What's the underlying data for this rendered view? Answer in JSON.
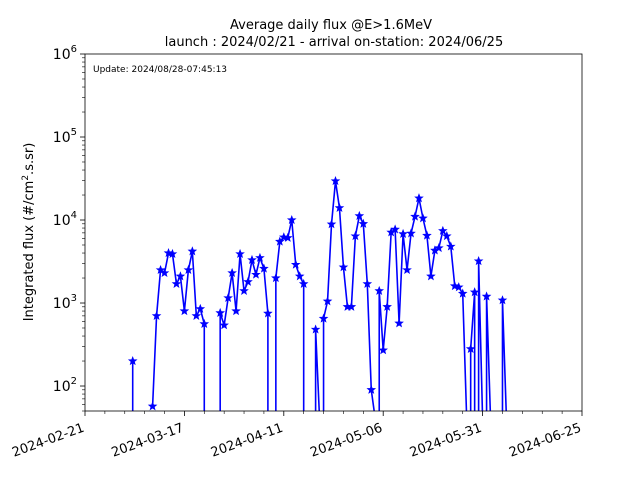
{
  "chart_data": {
    "type": "line",
    "title_lines": [
      "Average daily flux @E>1.6MeV",
      "launch : 2024/02/21 - arrival on-station: 2024/06/25"
    ],
    "annotation": "Update: 2024/08/28-07:45:13",
    "ylabel": "Integrated flux (#/cm².s.sr)",
    "ylabel_parts": {
      "before": "Integrated flux (#/cm",
      "sup": "2",
      "after": ".s.sr)"
    },
    "xlabel": "",
    "yscale": "log",
    "ylim": [
      50,
      1000000
    ],
    "xlim": [
      "2024-02-21",
      "2024-06-25"
    ],
    "y_ticks": [
      {
        "value": 100,
        "base": "10",
        "exp": "2"
      },
      {
        "value": 1000,
        "base": "10",
        "exp": "3"
      },
      {
        "value": 10000,
        "base": "10",
        "exp": "4"
      },
      {
        "value": 100000,
        "base": "10",
        "exp": "5"
      },
      {
        "value": 1000000,
        "base": "10",
        "exp": "6"
      }
    ],
    "x_ticks": [
      "2024-02-21",
      "2024-03-17",
      "2024-04-11",
      "2024-05-06",
      "2024-05-31",
      "2024-06-25"
    ],
    "series_color": "#0000ff",
    "marker": "star",
    "grid": false,
    "segments": [
      [
        [
          "2024-03-04",
          200
        ],
        [
          "2024-03-04",
          40
        ]
      ],
      [
        [
          "2024-03-09",
          57
        ],
        [
          "2024-03-10",
          700
        ],
        [
          "2024-03-11",
          2500
        ],
        [
          "2024-03-12",
          2300
        ],
        [
          "2024-03-13",
          4000
        ],
        [
          "2024-03-14",
          3900
        ],
        [
          "2024-03-15",
          1700
        ],
        [
          "2024-03-16",
          2100
        ],
        [
          "2024-03-17",
          800
        ],
        [
          "2024-03-18",
          2500
        ],
        [
          "2024-03-19",
          4200
        ],
        [
          "2024-03-20",
          700
        ],
        [
          "2024-03-21",
          850
        ],
        [
          "2024-03-22",
          560
        ],
        [
          "2024-03-22",
          40
        ]
      ],
      [
        [
          "2024-03-26",
          40
        ],
        [
          "2024-03-26",
          760
        ],
        [
          "2024-03-27",
          540
        ],
        [
          "2024-03-28",
          1150
        ],
        [
          "2024-03-29",
          2300
        ],
        [
          "2024-03-30",
          800
        ],
        [
          "2024-03-31",
          3900
        ],
        [
          "2024-04-01",
          1400
        ],
        [
          "2024-04-02",
          1800
        ],
        [
          "2024-04-03",
          3300
        ],
        [
          "2024-04-04",
          2200
        ],
        [
          "2024-04-05",
          3500
        ],
        [
          "2024-04-06",
          2600
        ],
        [
          "2024-04-07",
          750
        ],
        [
          "2024-04-07",
          40
        ]
      ],
      [
        [
          "2024-04-09",
          40
        ],
        [
          "2024-04-09",
          2000
        ],
        [
          "2024-04-10",
          5500
        ],
        [
          "2024-04-11",
          6200
        ],
        [
          "2024-04-12",
          6100
        ],
        [
          "2024-04-13",
          10000
        ],
        [
          "2024-04-14",
          2900
        ],
        [
          "2024-04-15",
          2100
        ],
        [
          "2024-04-16",
          1700
        ],
        [
          "2024-04-16",
          40
        ]
      ],
      [
        [
          "2024-04-19",
          40
        ],
        [
          "2024-04-19",
          480
        ],
        [
          "2024-04-20",
          40
        ]
      ],
      [
        [
          "2024-04-21",
          40
        ],
        [
          "2024-04-21",
          650
        ],
        [
          "2024-04-22",
          1050
        ],
        [
          "2024-04-23",
          8900
        ],
        [
          "2024-04-24",
          29500
        ],
        [
          "2024-04-25",
          14000
        ],
        [
          "2024-04-26",
          2700
        ],
        [
          "2024-04-27",
          900
        ],
        [
          "2024-04-28",
          900
        ],
        [
          "2024-04-29",
          6400
        ],
        [
          "2024-04-30",
          11200
        ],
        [
          "2024-05-01",
          9000
        ],
        [
          "2024-05-02",
          1700
        ],
        [
          "2024-05-03",
          90
        ],
        [
          "2024-05-04",
          40
        ]
      ],
      [
        [
          "2024-05-05",
          40
        ],
        [
          "2024-05-05",
          1400
        ],
        [
          "2024-05-06",
          270
        ],
        [
          "2024-05-07",
          900
        ],
        [
          "2024-05-08",
          7100
        ],
        [
          "2024-05-09",
          7700
        ],
        [
          "2024-05-10",
          570
        ],
        [
          "2024-05-11",
          6800
        ],
        [
          "2024-05-12",
          2500
        ],
        [
          "2024-05-13",
          6900
        ],
        [
          "2024-05-14",
          11000
        ],
        [
          "2024-05-15",
          18300
        ],
        [
          "2024-05-16",
          10500
        ],
        [
          "2024-05-17",
          6500
        ],
        [
          "2024-05-18",
          2100
        ],
        [
          "2024-05-19",
          4300
        ],
        [
          "2024-05-20",
          4600
        ],
        [
          "2024-05-21",
          7400
        ],
        [
          "2024-05-22",
          6400
        ],
        [
          "2024-05-23",
          4800
        ],
        [
          "2024-05-24",
          1600
        ],
        [
          "2024-05-25",
          1550
        ],
        [
          "2024-05-26",
          1300
        ],
        [
          "2024-05-27",
          40
        ]
      ],
      [
        [
          "2024-05-28",
          40
        ],
        [
          "2024-05-28",
          280
        ],
        [
          "2024-05-29",
          1350
        ],
        [
          "2024-05-29",
          40
        ]
      ],
      [
        [
          "2024-05-30",
          40
        ],
        [
          "2024-05-30",
          3200
        ],
        [
          "2024-05-31",
          40
        ]
      ],
      [
        [
          "2024-06-01",
          40
        ],
        [
          "2024-06-01",
          1200
        ],
        [
          "2024-06-02",
          40
        ]
      ],
      [
        [
          "2024-06-05",
          40
        ],
        [
          "2024-06-05",
          1080
        ],
        [
          "2024-06-06",
          40
        ]
      ]
    ]
  }
}
